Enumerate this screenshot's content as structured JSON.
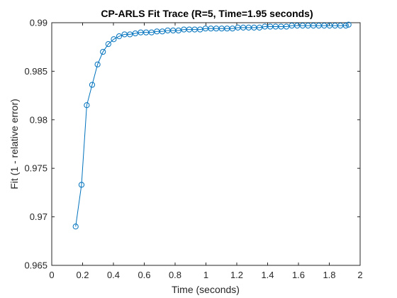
{
  "chart_data": {
    "type": "line",
    "title": "CP-ARLS Fit Trace (R=5, Time=1.95 seconds)",
    "xlabel": "Time (seconds)",
    "ylabel": "Fit (1 - relative error)",
    "xlim": [
      0,
      2
    ],
    "ylim": [
      0.965,
      0.99
    ],
    "xticks": [
      0,
      0.2,
      0.4,
      0.6,
      0.8,
      1,
      1.2,
      1.4,
      1.6,
      1.8,
      2
    ],
    "xtick_labels": [
      "0",
      "0.2",
      "0.4",
      "0.6",
      "0.8",
      "1",
      "1.2",
      "1.4",
      "1.6",
      "1.8",
      "2"
    ],
    "yticks": [
      0.965,
      0.97,
      0.975,
      0.98,
      0.985,
      0.99
    ],
    "ytick_labels": [
      "0.965",
      "0.97",
      "0.975",
      "0.98",
      "0.985",
      "0.99"
    ],
    "grid": false,
    "line_color": "#0072BD",
    "marker": "circle",
    "series": [
      {
        "x": [
          0.155,
          0.193,
          0.227,
          0.262,
          0.297,
          0.332,
          0.367,
          0.402,
          0.437,
          0.472,
          0.507,
          0.542,
          0.577,
          0.612,
          0.647,
          0.682,
          0.717,
          0.752,
          0.787,
          0.822,
          0.857,
          0.892,
          0.927,
          0.962,
          0.997,
          1.032,
          1.067,
          1.102,
          1.137,
          1.172,
          1.207,
          1.242,
          1.277,
          1.312,
          1.347,
          1.382,
          1.417,
          1.452,
          1.487,
          1.522,
          1.557,
          1.592,
          1.627,
          1.662,
          1.697,
          1.732,
          1.767,
          1.802,
          1.837,
          1.872,
          1.907,
          1.925
        ],
        "y": [
          0.969,
          0.9733,
          0.9815,
          0.9836,
          0.9857,
          0.987,
          0.9878,
          0.9883,
          0.9886,
          0.9888,
          0.9888,
          0.9889,
          0.989,
          0.989,
          0.989,
          0.9891,
          0.9891,
          0.9892,
          0.9892,
          0.9892,
          0.9893,
          0.9893,
          0.9893,
          0.9893,
          0.9894,
          0.9894,
          0.9894,
          0.9894,
          0.9894,
          0.9894,
          0.9895,
          0.9895,
          0.9895,
          0.9895,
          0.9895,
          0.9896,
          0.9896,
          0.9896,
          0.9896,
          0.9896,
          0.9897,
          0.9897,
          0.9897,
          0.9897,
          0.9897,
          0.9897,
          0.9897,
          0.9897,
          0.9897,
          0.9897,
          0.9897,
          0.9898
        ]
      }
    ]
  }
}
